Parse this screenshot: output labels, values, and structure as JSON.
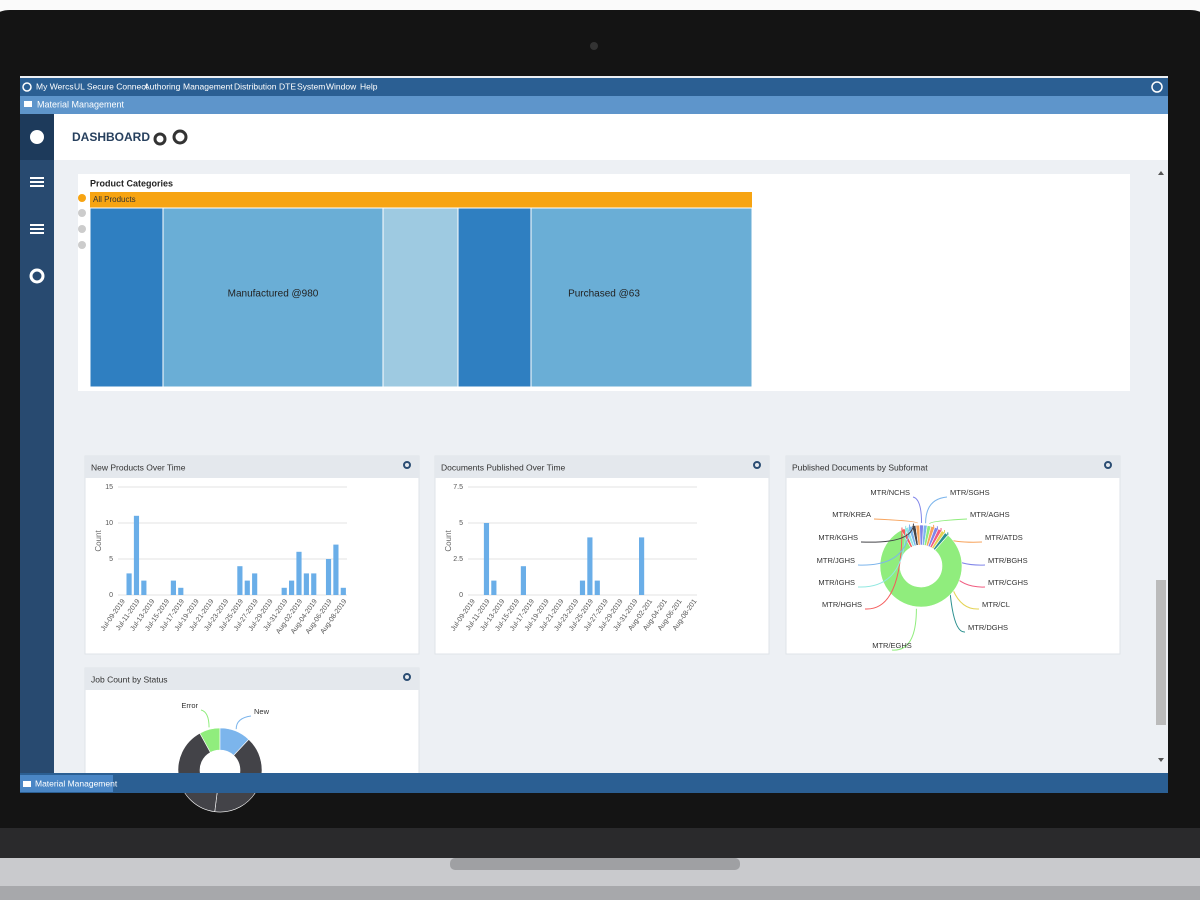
{
  "menu": [
    "My Wercs",
    "UL Secure Connect",
    "Authoring",
    "Management",
    "Distribution",
    "DTE",
    "System",
    "Window",
    "Help"
  ],
  "tab": "Material Management",
  "header": {
    "title": "DASHBOARD"
  },
  "product_categories": {
    "title": "Product Categories",
    "root": "All Products",
    "labels": [
      "Manufactured @980",
      "Purchased @63"
    ]
  },
  "panels": [
    {
      "title": "New Products Over Time",
      "chart": {
        "type": "bar",
        "y_label": "Count",
        "color": "#6aaee8",
        "categories": [
          "Jul-09-2019",
          null,
          "Jul-11-2019",
          null,
          "Jul-13-2019",
          null,
          "Jul-15-2019",
          null,
          "Jul-17-2019",
          null,
          "Jul-19-2019",
          null,
          "Jul-21-2019",
          null,
          "Jul-23-2019",
          null,
          "Jul-25-2019",
          null,
          "Jul-27-2019",
          null,
          "Jul-29-2019",
          null,
          "Jul-31-2019",
          null,
          "Aug-02-2019",
          null,
          "Aug-04-2019",
          null,
          "Aug-06-2019",
          null,
          "Aug-08-2019"
        ],
        "values": [
          0,
          3,
          11,
          2,
          0,
          0,
          0,
          2,
          1,
          0,
          0,
          0,
          0,
          0,
          0,
          0,
          4,
          2,
          3,
          0,
          0,
          0,
          1,
          2,
          6,
          3,
          3,
          0,
          5,
          7,
          1
        ],
        "ylim": [
          0,
          15
        ],
        "yticks": [
          0,
          5,
          10,
          15
        ],
        "grid": true
      }
    },
    {
      "title": "Documents Published Over Time",
      "chart": {
        "type": "bar",
        "y_label": "Count",
        "color": "#6aaee8",
        "categories": [
          "Jul-09-2019",
          null,
          "Jul-11-2019",
          null,
          "Jul-13-2019",
          null,
          "Jul-15-2019",
          null,
          "Jul-17-2019",
          null,
          "Jul-19-2019",
          null,
          "Jul-21-2019",
          null,
          "Jul-23-2019",
          null,
          "Jul-25-2019",
          null,
          "Jul-27-2019",
          null,
          "Jul-29-2019",
          null,
          "Jul-31-2019",
          null,
          "Aug-02-201",
          null,
          "Aug-04-201",
          null,
          "Aug-06-201",
          null,
          "Aug-08-201"
        ],
        "values": [
          0,
          0,
          5,
          1,
          0,
          0,
          0,
          2,
          0,
          0,
          0,
          0,
          0,
          0,
          0,
          1,
          4,
          1,
          0,
          0,
          0,
          0,
          0,
          4,
          0,
          0,
          0,
          0,
          0,
          0,
          0
        ],
        "ylim": [
          0,
          7.5
        ],
        "yticks": [
          0,
          2.5,
          5,
          7.5
        ],
        "grid": true
      }
    },
    {
      "title": "Published Documents by Subformat",
      "chart": {
        "type": "donut",
        "categories": [
          "MTR/SGHS",
          "MTR/AGHS",
          "MTR/ATDS",
          "MTR/BGHS",
          "MTR/CGHS",
          "MTR/CL",
          "MTR/DGHS",
          "MTR/EGHS",
          "MTR/HGHS",
          "MTR/IGHS",
          "MTR/JGHS",
          "MTR/KGHS",
          "MTR/KREA",
          "MTR/NCHS"
        ],
        "values": [
          1.5,
          1.5,
          1.5,
          1.5,
          1.5,
          1.5,
          1.5,
          80.5,
          1.5,
          1.5,
          1.5,
          1.5,
          1.5,
          1.5
        ],
        "colors": [
          "#7cb5ec",
          "#90ed7d",
          "#f7a35c",
          "#8085e9",
          "#f15c80",
          "#e4d354",
          "#2b908f",
          "#90ed7d",
          "#f45b5b",
          "#91e8e1",
          "#7cb5ec",
          "#434348",
          "#f7a35c",
          "#8085e9"
        ]
      }
    },
    {
      "title": "Job Count by Status",
      "chart": {
        "type": "donut",
        "categories": [
          "Error",
          "New",
          null,
          null
        ],
        "values": [
          8,
          12,
          40,
          40
        ],
        "colors": [
          "#90ed7d",
          "#7cb5ec",
          "#434348",
          "#434348"
        ]
      }
    }
  ],
  "taskbar": "Material Management"
}
